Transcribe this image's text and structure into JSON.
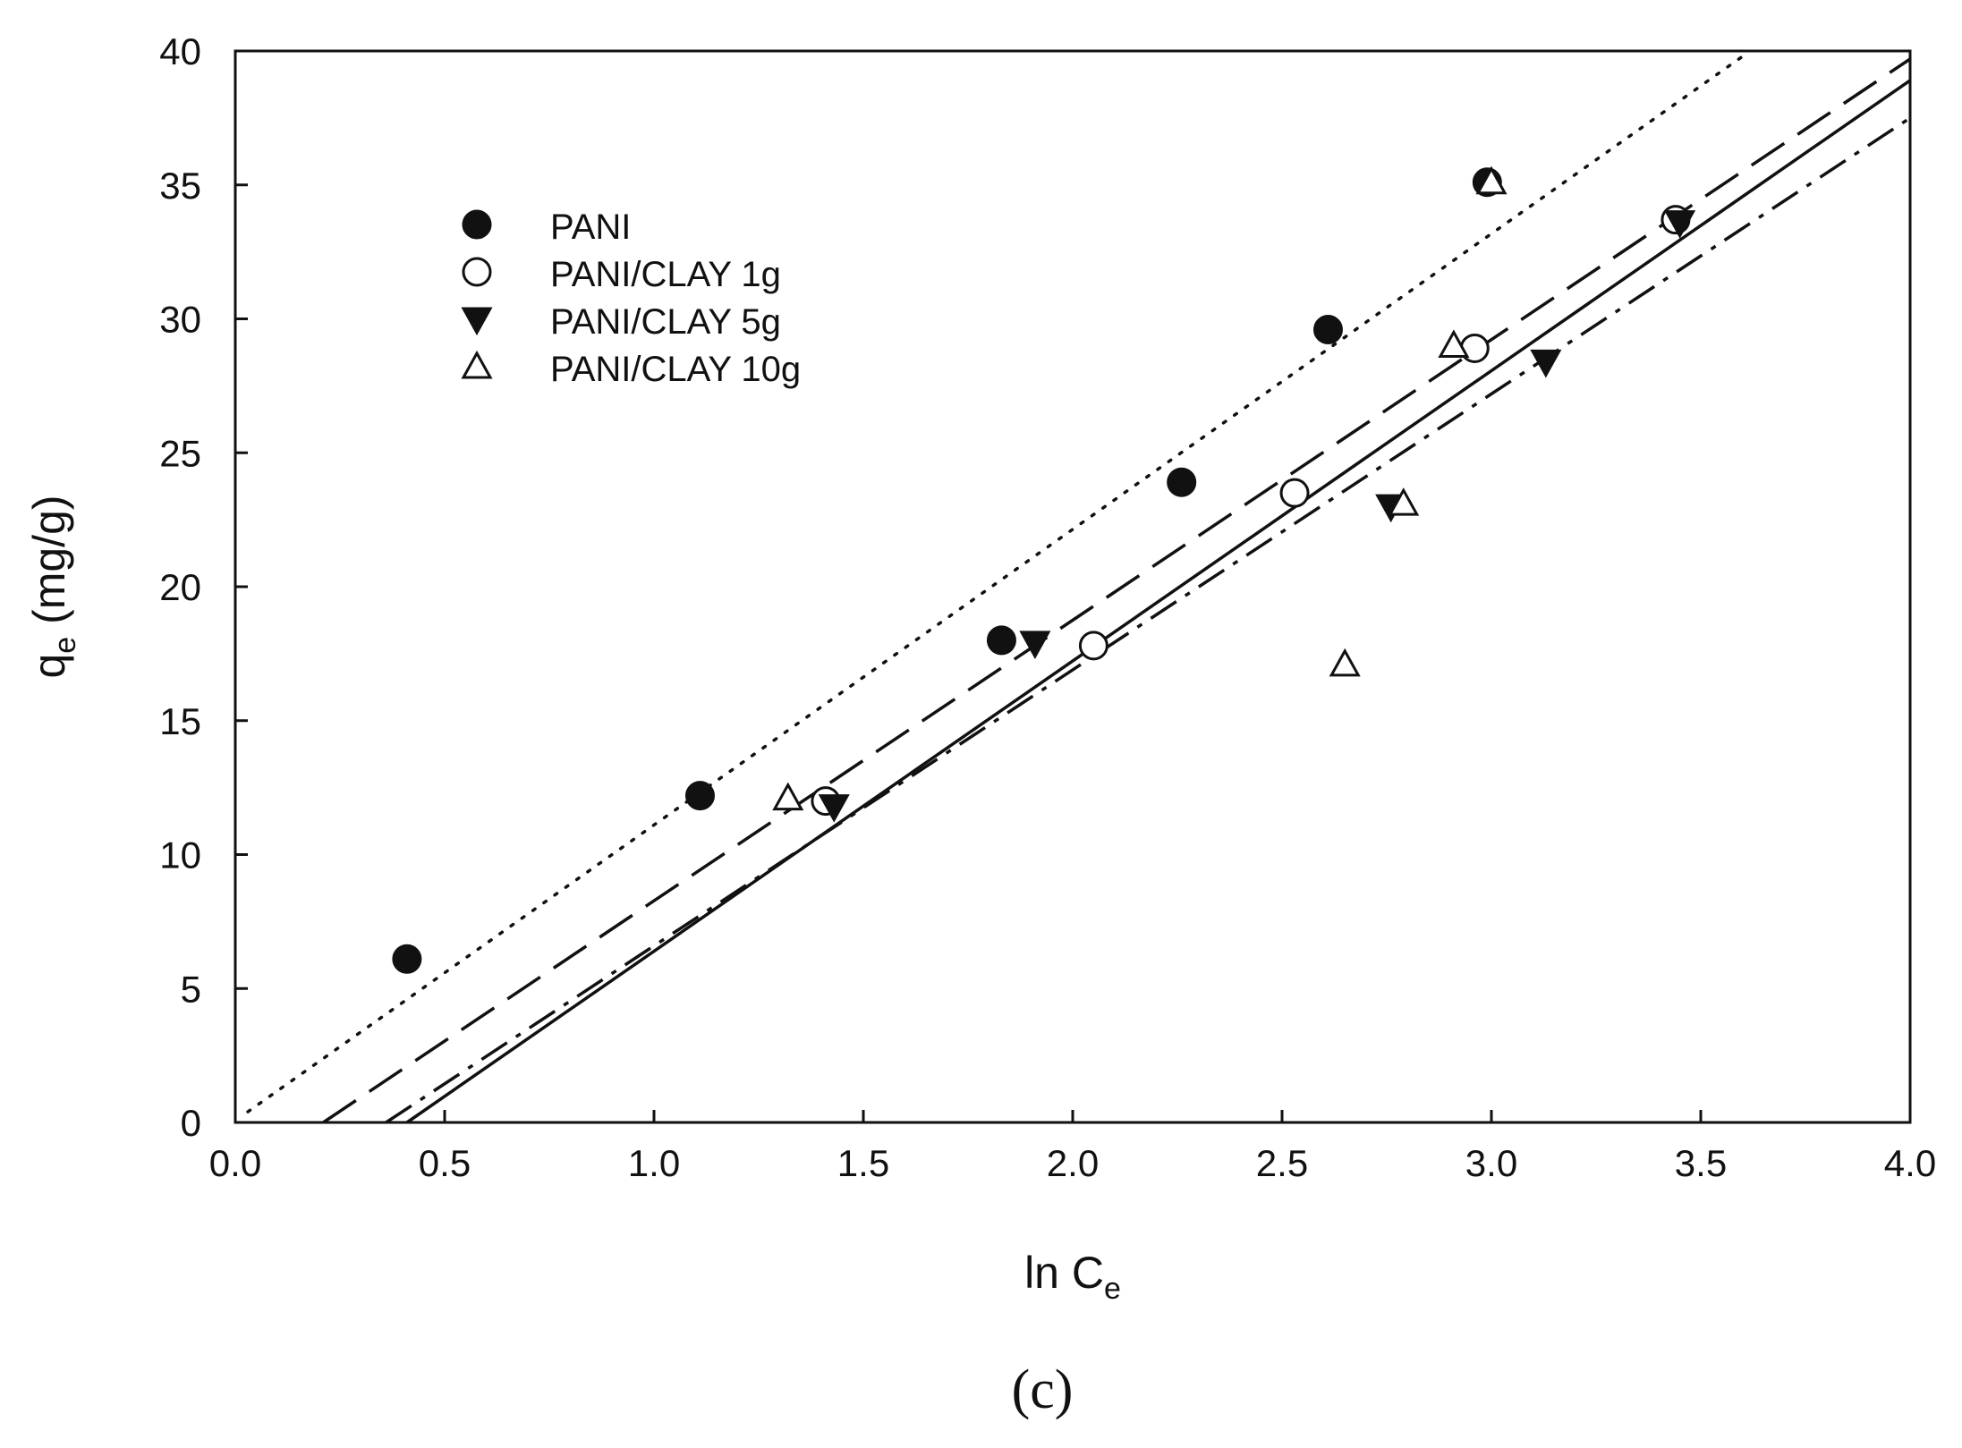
{
  "chart_data": {
    "type": "scatter",
    "title": "",
    "xlabel": {
      "main": "ln C",
      "sub": "e"
    },
    "ylabel": {
      "main": "q",
      "sub": "e",
      "rest": " (mg/g)"
    },
    "xlim": [
      0.0,
      4.0
    ],
    "ylim": [
      0,
      40
    ],
    "x_ticks": [
      "0.0",
      "0.5",
      "1.0",
      "1.5",
      "2.0",
      "2.5",
      "3.0",
      "3.5",
      "4.0"
    ],
    "y_ticks": [
      "0",
      "5",
      "10",
      "15",
      "20",
      "25",
      "30",
      "35",
      "40"
    ],
    "grid": false,
    "legend_position": "upper-left",
    "panel_label": "(c)",
    "series": [
      {
        "name": "PANI",
        "marker": "filled-circle",
        "line_style": "dotted",
        "points": [
          [
            0.41,
            6.1
          ],
          [
            1.11,
            12.2
          ],
          [
            1.83,
            18.0
          ],
          [
            2.26,
            23.9
          ],
          [
            2.61,
            29.6
          ],
          [
            2.99,
            35.1
          ]
        ],
        "fit": [
          [
            0.03,
            0.4
          ],
          [
            3.6,
            39.8
          ]
        ]
      },
      {
        "name": "PANI/CLAY 1g",
        "marker": "open-circle",
        "line_style": "solid",
        "points": [
          [
            1.41,
            12.0
          ],
          [
            2.05,
            17.8
          ],
          [
            2.53,
            23.5
          ],
          [
            2.96,
            28.9
          ],
          [
            3.44,
            33.7
          ]
        ],
        "fit": [
          [
            0.41,
            0.0
          ],
          [
            4.0,
            38.9
          ]
        ]
      },
      {
        "name": "PANI/CLAY 5g",
        "marker": "filled-triangle-down",
        "line_style": "dash-dot",
        "points": [
          [
            1.43,
            11.8
          ],
          [
            1.91,
            17.9
          ],
          [
            2.76,
            23.0
          ],
          [
            3.13,
            28.4
          ],
          [
            3.45,
            33.6
          ]
        ],
        "fit": [
          [
            0.36,
            0.0
          ],
          [
            4.0,
            37.5
          ]
        ]
      },
      {
        "name": "PANI/CLAY 10g",
        "marker": "open-triangle-up",
        "line_style": "long-dash",
        "points": [
          [
            1.32,
            12.1
          ],
          [
            2.65,
            17.1
          ],
          [
            2.79,
            23.1
          ],
          [
            2.91,
            29.0
          ],
          [
            3.0,
            35.1
          ]
        ],
        "fit": [
          [
            0.21,
            0.0
          ],
          [
            4.0,
            39.7
          ]
        ]
      }
    ]
  }
}
